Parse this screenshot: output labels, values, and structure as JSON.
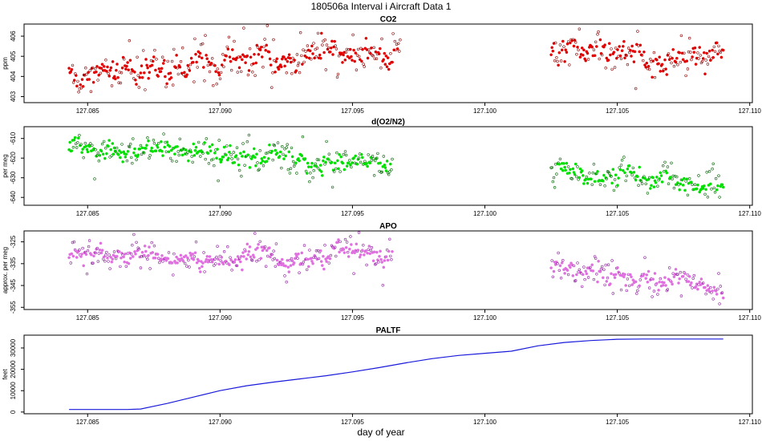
{
  "figure": {
    "title": "180506a   Interval i Aircraft Data 1",
    "xlabel": "day of year",
    "xlim": [
      127.0826,
      127.1101
    ],
    "xticks": [
      "127.085",
      "127.090",
      "127.095",
      "127.100",
      "127.105",
      "127.110"
    ],
    "xtick_values": [
      127.085,
      127.09,
      127.095,
      127.1,
      127.105,
      127.11
    ]
  },
  "chart_data": [
    {
      "type": "scatter",
      "title": "CO2",
      "ylabel": "ppm",
      "ylim": [
        402.7,
        406.6
      ],
      "yticks": [
        403,
        404,
        405,
        406
      ],
      "color_fill": "#e00000",
      "color_dark": "#8b0000",
      "segments": [
        {
          "x_start": 127.0843,
          "x_end": 127.0968,
          "y_start": 404.2,
          "y_end": 405.3,
          "n": 380
        },
        {
          "x_start": 127.1025,
          "x_end": 127.109,
          "y_start": 405.1,
          "y_end": 405.0,
          "n": 190
        }
      ],
      "scatter_sd": 0.45
    },
    {
      "type": "scatter",
      "title": "d(O2/N2)",
      "ylabel": "per meg",
      "ylim": [
        -644,
        -604
      ],
      "yticks": [
        -610,
        -620,
        -630,
        -640
      ],
      "color_fill": "#00e000",
      "color_dark": "#006400",
      "segments": [
        {
          "x_start": 127.0843,
          "x_end": 127.0965,
          "y_start": -615.0,
          "y_end": -624.0,
          "n": 380
        },
        {
          "x_start": 127.1025,
          "x_end": 127.109,
          "y_start": -628.0,
          "y_end": -635.0,
          "n": 190
        }
      ],
      "scatter_sd": 3.2
    },
    {
      "type": "scatter",
      "title": "APO",
      "ylabel": "approx. per meg",
      "ylim": [
        -356,
        -320
      ],
      "yticks": [
        -325,
        -335,
        -345,
        -355
      ],
      "color_fill": "#e070e0",
      "color_dark": "#9020a0",
      "segments": [
        {
          "x_start": 127.0843,
          "x_end": 127.0965,
          "y_start": -331.0,
          "y_end": -332.0,
          "n": 380
        },
        {
          "x_start": 127.1025,
          "x_end": 127.109,
          "y_start": -336.0,
          "y_end": -347.0,
          "n": 190
        }
      ],
      "scatter_sd": 3.0
    },
    {
      "type": "line",
      "title": "PALTF",
      "ylabel": "feet",
      "ylim": [
        -800,
        36000
      ],
      "yticks": [
        0,
        10000,
        20000,
        30000
      ],
      "color": "#1a1adc",
      "x": [
        127.0843,
        127.0865,
        127.087,
        127.088,
        127.089,
        127.09,
        127.091,
        127.092,
        127.093,
        127.094,
        127.095,
        127.096,
        127.097,
        127.098,
        127.099,
        127.1,
        127.101,
        127.102,
        127.103,
        127.104,
        127.105,
        127.106,
        127.107,
        127.108,
        127.109
      ],
      "y": [
        1200,
        1200,
        1400,
        4000,
        7000,
        10000,
        12300,
        14000,
        15500,
        17000,
        18800,
        20800,
        23000,
        25000,
        26500,
        27500,
        28500,
        31000,
        32600,
        33500,
        34100,
        34200,
        34200,
        34200,
        34200
      ]
    }
  ]
}
